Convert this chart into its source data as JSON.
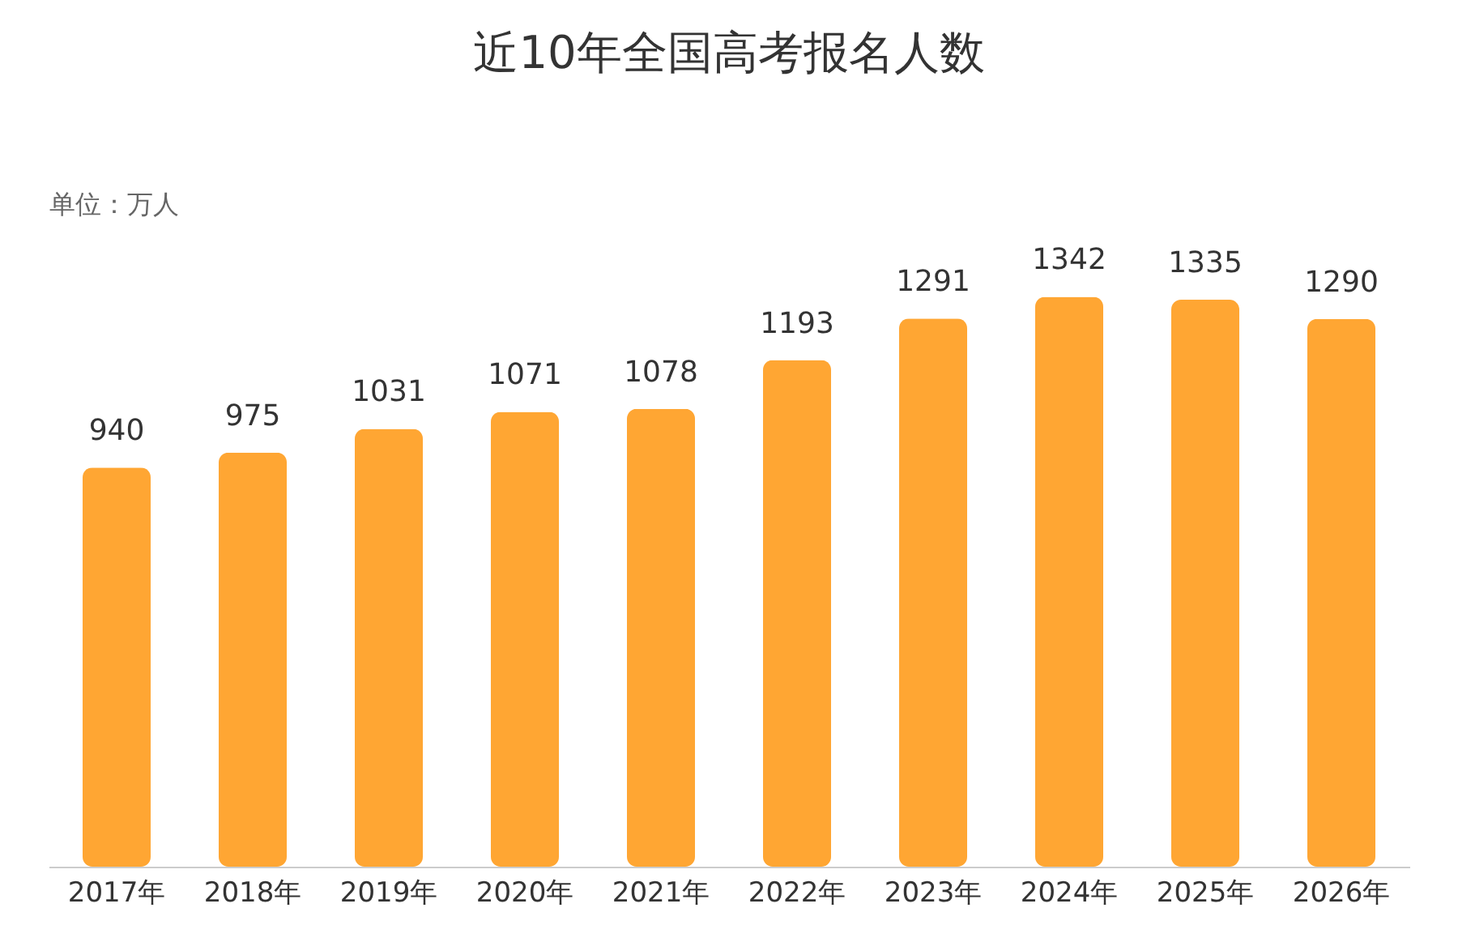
{
  "chart_data": {
    "type": "bar",
    "title": "近10年全国高考报名人数",
    "ylabel": "单位：万人",
    "categories": [
      "2017年",
      "2018年",
      "2019年",
      "2020年",
      "2021年",
      "2022年",
      "2023年",
      "2024年",
      "2025年",
      "2026年"
    ],
    "values": [
      940,
      975,
      1031,
      1071,
      1078,
      1193,
      1291,
      1342,
      1335,
      1290
    ],
    "color": "#ffa633",
    "data_labels": true
  }
}
